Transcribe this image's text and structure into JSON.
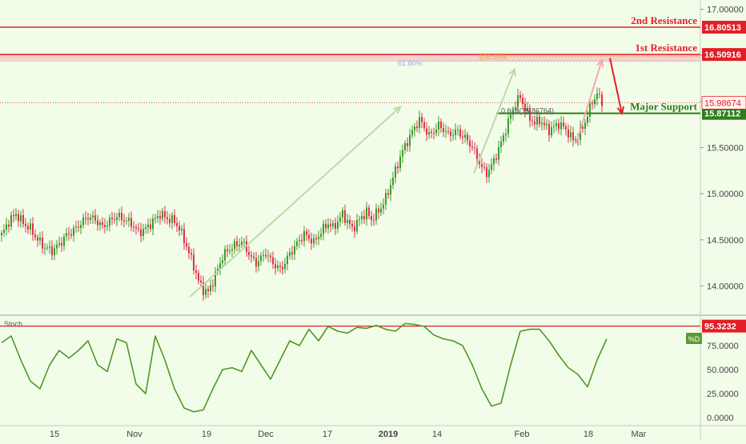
{
  "colors": {
    "background": "#f2fde9",
    "bull_candle": "#3a9a2a",
    "bear_candle": "#e0304a",
    "resistance": "#e41e26",
    "support": "#2f7d1a",
    "stoch_line": "#4a9a25",
    "trend_arrow": "#bcd9a8",
    "fib_line": "#f0a23c",
    "fib_alt": "#9aa8e0"
  },
  "chart_data": [
    {
      "type": "candlestick",
      "x_ticks": [
        "15",
        "Nov",
        "19",
        "Dec",
        "17",
        "2019",
        "14",
        "Feb",
        "18",
        "Mar"
      ],
      "y_ticks": [
        "14.00000",
        "14.50000",
        "15.00000",
        "15.50000",
        "16.00000",
        "16.50000",
        "17.00000"
      ],
      "ylim": [
        13.7,
        17.1
      ],
      "close_path": [
        [
          0,
          14.55
        ],
        [
          3,
          14.7
        ],
        [
          6,
          14.78
        ],
        [
          9,
          14.68
        ],
        [
          12,
          14.62
        ],
        [
          15,
          14.5
        ],
        [
          18,
          14.42
        ],
        [
          21,
          14.38
        ],
        [
          24,
          14.45
        ],
        [
          27,
          14.55
        ],
        [
          30,
          14.6
        ],
        [
          33,
          14.68
        ],
        [
          36,
          14.75
        ],
        [
          39,
          14.72
        ],
        [
          42,
          14.64
        ],
        [
          45,
          14.7
        ],
        [
          48,
          14.76
        ],
        [
          51,
          14.72
        ],
        [
          54,
          14.68
        ],
        [
          57,
          14.58
        ],
        [
          60,
          14.62
        ],
        [
          63,
          14.7
        ],
        [
          66,
          14.78
        ],
        [
          69,
          14.73
        ],
        [
          72,
          14.7
        ],
        [
          74,
          14.62
        ],
        [
          76,
          14.5
        ],
        [
          78,
          14.36
        ],
        [
          80,
          14.22
        ],
        [
          82,
          14.05
        ],
        [
          84,
          13.96
        ],
        [
          86,
          13.93
        ],
        [
          88,
          14.05
        ],
        [
          90,
          14.18
        ],
        [
          92,
          14.32
        ],
        [
          94,
          14.38
        ],
        [
          96,
          14.42
        ],
        [
          98,
          14.45
        ],
        [
          100,
          14.48
        ],
        [
          102,
          14.4
        ],
        [
          104,
          14.3
        ],
        [
          106,
          14.25
        ],
        [
          108,
          14.3
        ],
        [
          110,
          14.36
        ],
        [
          112,
          14.28
        ],
        [
          114,
          14.22
        ],
        [
          116,
          14.18
        ],
        [
          118,
          14.25
        ],
        [
          120,
          14.35
        ],
        [
          122,
          14.42
        ],
        [
          124,
          14.5
        ],
        [
          126,
          14.56
        ],
        [
          128,
          14.52
        ],
        [
          130,
          14.47
        ],
        [
          132,
          14.55
        ],
        [
          134,
          14.62
        ],
        [
          136,
          14.68
        ],
        [
          138,
          14.63
        ],
        [
          140,
          14.7
        ],
        [
          142,
          14.78
        ],
        [
          144,
          14.7
        ],
        [
          146,
          14.62
        ],
        [
          148,
          14.68
        ],
        [
          150,
          14.75
        ],
        [
          152,
          14.8
        ],
        [
          154,
          14.72
        ],
        [
          156,
          14.78
        ],
        [
          158,
          14.85
        ],
        [
          160,
          14.95
        ],
        [
          162,
          15.1
        ],
        [
          164,
          15.25
        ],
        [
          166,
          15.4
        ],
        [
          168,
          15.52
        ],
        [
          170,
          15.62
        ],
        [
          172,
          15.72
        ],
        [
          174,
          15.8
        ],
        [
          176,
          15.72
        ],
        [
          178,
          15.63
        ],
        [
          180,
          15.68
        ],
        [
          182,
          15.74
        ],
        [
          184,
          15.7
        ],
        [
          186,
          15.64
        ],
        [
          188,
          15.66
        ],
        [
          190,
          15.68
        ],
        [
          192,
          15.62
        ],
        [
          194,
          15.58
        ],
        [
          196,
          15.5
        ],
        [
          198,
          15.4
        ],
        [
          200,
          15.28
        ],
        [
          202,
          15.22
        ],
        [
          204,
          15.3
        ],
        [
          206,
          15.42
        ],
        [
          208,
          15.55
        ],
        [
          210,
          15.7
        ],
        [
          212,
          15.85
        ],
        [
          214,
          15.98
        ],
        [
          216,
          16.05
        ],
        [
          218,
          15.92
        ],
        [
          220,
          15.82
        ],
        [
          222,
          15.76
        ],
        [
          224,
          15.8
        ],
        [
          226,
          15.74
        ],
        [
          228,
          15.69
        ],
        [
          230,
          15.72
        ],
        [
          232,
          15.76
        ],
        [
          234,
          15.72
        ],
        [
          236,
          15.66
        ],
        [
          238,
          15.58
        ],
        [
          240,
          15.62
        ],
        [
          242,
          15.72
        ],
        [
          244,
          15.85
        ],
        [
          246,
          16.0
        ],
        [
          248,
          16.08
        ],
        [
          250,
          15.99
        ]
      ],
      "stoch_path": [
        [
          0,
          78
        ],
        [
          4,
          85
        ],
        [
          8,
          60
        ],
        [
          12,
          38
        ],
        [
          16,
          30
        ],
        [
          20,
          55
        ],
        [
          24,
          70
        ],
        [
          28,
          62
        ],
        [
          32,
          70
        ],
        [
          36,
          80
        ],
        [
          40,
          55
        ],
        [
          44,
          48
        ],
        [
          48,
          82
        ],
        [
          52,
          78
        ],
        [
          56,
          35
        ],
        [
          60,
          25
        ],
        [
          64,
          85
        ],
        [
          68,
          60
        ],
        [
          72,
          30
        ],
        [
          76,
          10
        ],
        [
          80,
          6
        ],
        [
          84,
          8
        ],
        [
          88,
          30
        ],
        [
          92,
          50
        ],
        [
          96,
          52
        ],
        [
          100,
          48
        ],
        [
          104,
          70
        ],
        [
          108,
          55
        ],
        [
          112,
          40
        ],
        [
          116,
          60
        ],
        [
          120,
          80
        ],
        [
          124,
          75
        ],
        [
          128,
          92
        ],
        [
          132,
          80
        ],
        [
          136,
          95
        ],
        [
          140,
          90
        ],
        [
          144,
          88
        ],
        [
          148,
          94
        ],
        [
          152,
          93
        ],
        [
          156,
          96
        ],
        [
          160,
          92
        ],
        [
          164,
          90
        ],
        [
          168,
          98
        ],
        [
          172,
          97
        ],
        [
          176,
          95
        ],
        [
          180,
          86
        ],
        [
          184,
          82
        ],
        [
          188,
          80
        ],
        [
          192,
          75
        ],
        [
          196,
          55
        ],
        [
          200,
          30
        ],
        [
          204,
          12
        ],
        [
          208,
          15
        ],
        [
          212,
          55
        ],
        [
          216,
          90
        ],
        [
          220,
          92
        ],
        [
          224,
          92
        ],
        [
          228,
          80
        ],
        [
          232,
          65
        ],
        [
          236,
          52
        ],
        [
          240,
          45
        ],
        [
          244,
          32
        ],
        [
          248,
          60
        ],
        [
          252,
          82
        ]
      ],
      "stoch": {
        "label": "Stoch",
        "ylim": [
          0,
          100
        ],
        "y_ticks": [
          "0.0000",
          "25.0000",
          "50.0000",
          "75.0000"
        ],
        "tag": "%D",
        "overbought_value": "95.3232"
      },
      "levels": {
        "r2_label": "2nd Resistance",
        "r2_value": "16.80513",
        "r1_label": "1st Resistance",
        "r1_value": "16.50916",
        "support_label": "Major Support",
        "support_value": "15.87112",
        "last_price": "15.98674",
        "fib100": "100.00%",
        "fib618": "61.80%",
        "fib_support": "0.618(15.86764)"
      }
    }
  ]
}
